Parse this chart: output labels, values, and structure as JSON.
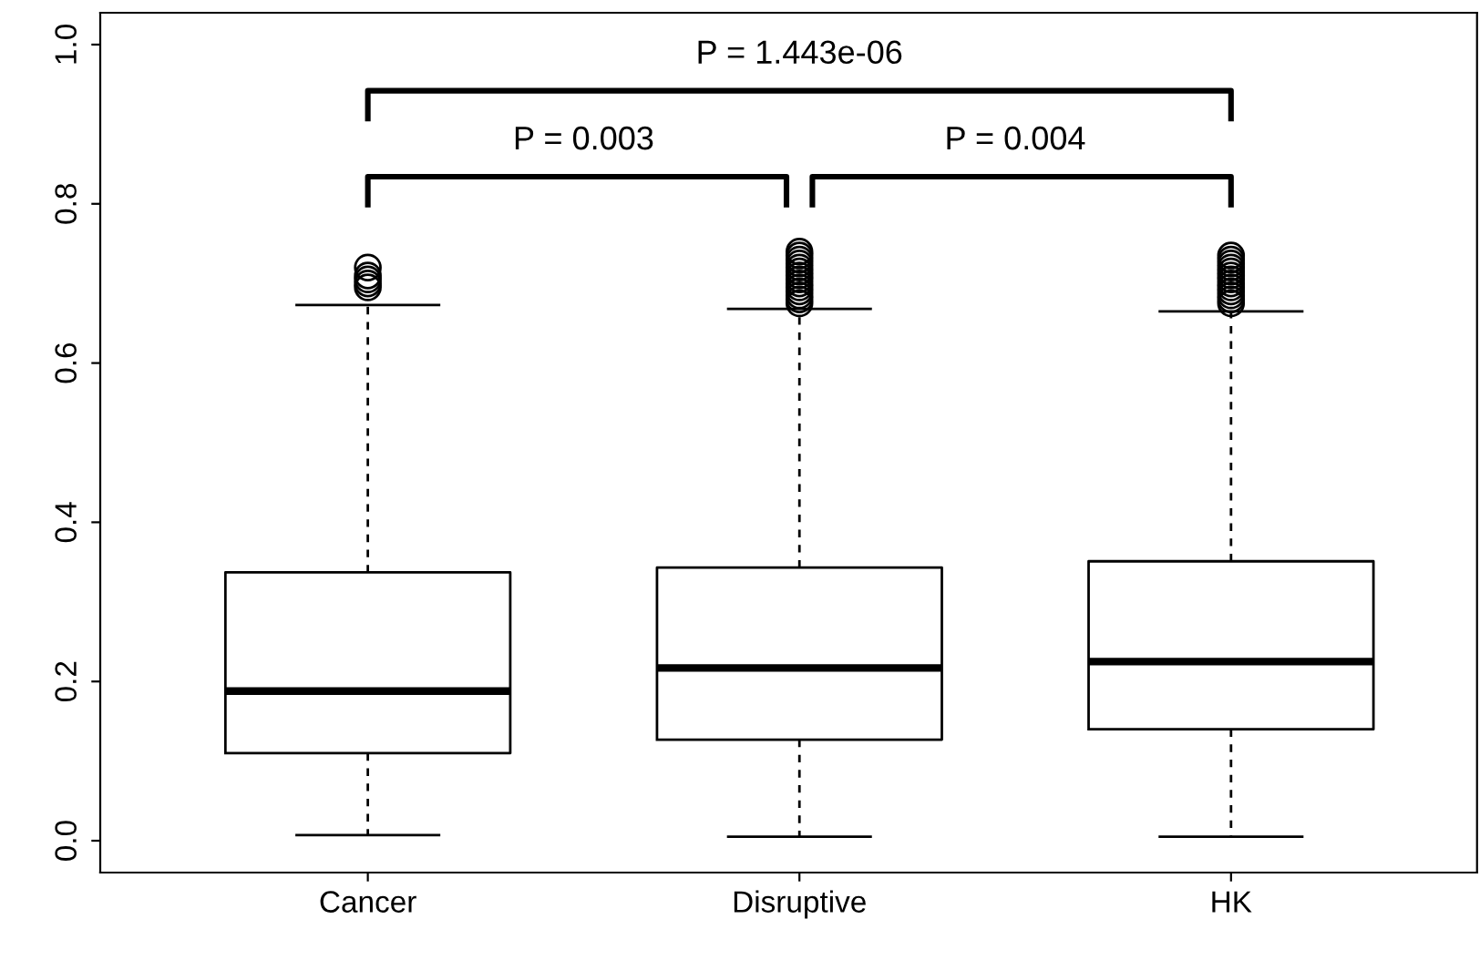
{
  "chart_data": {
    "type": "box",
    "categories": [
      "Cancer",
      "Disruptive",
      "HK"
    ],
    "boxes": [
      {
        "low": 0.007,
        "q1": 0.11,
        "median": 0.188,
        "q3": 0.337,
        "high": 0.673,
        "outliers": [
          0.695,
          0.7,
          0.705,
          0.71,
          0.72
        ]
      },
      {
        "low": 0.005,
        "q1": 0.127,
        "median": 0.217,
        "q3": 0.343,
        "high": 0.668,
        "outliers": [
          0.675,
          0.68,
          0.685,
          0.69,
          0.695,
          0.7,
          0.705,
          0.71,
          0.715,
          0.72,
          0.725,
          0.73,
          0.735,
          0.74
        ]
      },
      {
        "low": 0.005,
        "q1": 0.14,
        "median": 0.225,
        "q3": 0.351,
        "high": 0.665,
        "outliers": [
          0.675,
          0.68,
          0.685,
          0.69,
          0.695,
          0.7,
          0.705,
          0.71,
          0.715,
          0.72,
          0.725,
          0.73,
          0.735
        ]
      }
    ],
    "ylim": [
      -0.04,
      1.04
    ],
    "yticks": [
      {
        "value": 0,
        "label": "0.0"
      },
      0.2,
      0.4,
      0.6,
      0.8,
      {
        "value": 1,
        "label": "1.0"
      }
    ],
    "annotations": [
      "P = 1.443e-06",
      "P = 0.003",
      "P = 0.004"
    ],
    "grid": false,
    "legend": false
  }
}
